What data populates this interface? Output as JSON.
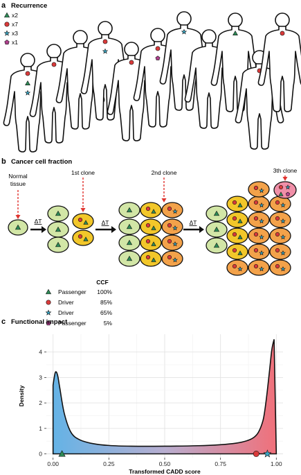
{
  "panel_a": {
    "letter": "a",
    "title": "Recurrence",
    "legend": [
      {
        "shape": "triangle",
        "color": "#2e8b57",
        "label": "x2"
      },
      {
        "shape": "circle",
        "color": "#d93a3a",
        "label": "x7"
      },
      {
        "shape": "star",
        "color": "#3aa6c4",
        "label": "x3"
      },
      {
        "shape": "pentagon",
        "color": "#b0418e",
        "label": "x1"
      }
    ],
    "figures": [
      {
        "markers": [
          "circle",
          "triangle",
          "star"
        ]
      },
      {
        "markers": [
          "circle"
        ]
      },
      {
        "markers": []
      },
      {
        "markers": [
          "circle",
          "star"
        ]
      },
      {
        "markers": [
          "circle"
        ]
      },
      {
        "markers": [
          "circle",
          "pentagon"
        ]
      },
      {
        "markers": [
          "star"
        ]
      },
      {
        "markers": []
      },
      {
        "markers": [
          "triangle"
        ]
      },
      {
        "markers": [
          "circle"
        ]
      },
      {
        "markers": [
          "circle"
        ]
      }
    ]
  },
  "panel_b": {
    "letter": "b",
    "title": "Cancer cell fraction",
    "labels": {
      "normal": "Normal\ntissue",
      "clone1": "1st clone",
      "clone2": "2nd clone",
      "clone3": "3th clone",
      "delta_t": "ΔT"
    },
    "ccf_header": "CCF",
    "ccf_rows": [
      {
        "shape": "triangle",
        "color": "#2e8b57",
        "label": "Passenger",
        "value": "100%"
      },
      {
        "shape": "circle",
        "color": "#d93a3a",
        "label": "Driver",
        "value": "85%"
      },
      {
        "shape": "star",
        "color": "#3aa6c4",
        "label": "Driver",
        "value": "65%"
      },
      {
        "shape": "pentagon",
        "color": "#b0418e",
        "label": "Passenger",
        "value": "5%"
      }
    ],
    "colors": {
      "normal_cell": "#d2e6a6",
      "clone1_cell": "#f2c72a",
      "clone2_cell": "#f3a24a",
      "clone3_cell": "#f08fa8",
      "arrow_red": "#e0342f"
    }
  },
  "panel_c": {
    "letter": "c",
    "title": "Functional impact"
  },
  "chart_data": {
    "type": "area",
    "xlabel": "Transformed CADD score",
    "ylabel": "Density",
    "xlim": [
      -0.03,
      1.03
    ],
    "ylim": [
      -0.15,
      4.7
    ],
    "xticks": [
      "0.00",
      "0.25",
      "0.50",
      "0.75",
      "1.00"
    ],
    "yticks": [
      "0",
      "1",
      "2",
      "3",
      "4"
    ],
    "grid": true,
    "fill_gradient": [
      "#64b3e6",
      "#f0707a"
    ],
    "series": [
      {
        "x": [
          0.0,
          0.01,
          0.02,
          0.03,
          0.05,
          0.08,
          0.12,
          0.18,
          0.25,
          0.35,
          0.5,
          0.65,
          0.75,
          0.82,
          0.87,
          0.9,
          0.92,
          0.94,
          0.95,
          0.96,
          0.97,
          0.98,
          0.99,
          1.0
        ],
        "values": [
          2.7,
          3.2,
          3.1,
          2.6,
          1.6,
          0.85,
          0.55,
          0.4,
          0.33,
          0.3,
          0.3,
          0.32,
          0.36,
          0.42,
          0.52,
          0.65,
          0.85,
          1.3,
          1.8,
          2.5,
          3.3,
          4.1,
          4.5,
          0.0
        ]
      }
    ],
    "markers": [
      {
        "shape": "triangle",
        "color": "#2e8b57",
        "x": 0.04,
        "y": 0.0
      },
      {
        "shape": "circle",
        "color": "#d93a3a",
        "x": 0.91,
        "y": 0.0
      },
      {
        "shape": "star",
        "color": "#3aa6c4",
        "x": 0.96,
        "y": 0.0
      }
    ]
  }
}
